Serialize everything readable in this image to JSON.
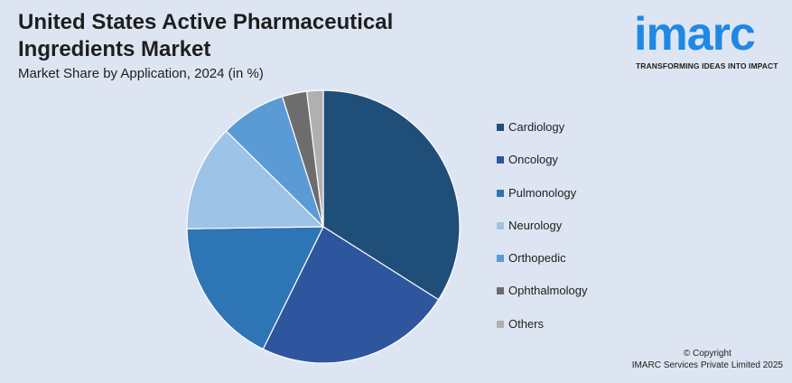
{
  "title": "United States Active Pharmaceutical Ingredients Market",
  "subtitle": "Market Share by Application, 2024 (in %)",
  "logo": {
    "word": "imarc",
    "tagline": "TRANSFORMING IDEAS INTO IMPACT"
  },
  "copyright": {
    "line1": "© Copyright",
    "line2": "IMARC Services Private Limited 2025"
  },
  "chart_data": {
    "type": "pie",
    "title": "United States Active Pharmaceutical Ingredients Market",
    "subtitle": "Market Share by Application, 2024 (in %)",
    "legend_position": "right",
    "slices": [
      {
        "label": "Cardiology",
        "value": 35,
        "color": "#1f4e79"
      },
      {
        "label": "Oncology",
        "value": 24,
        "color": "#2e569e"
      },
      {
        "label": "Pulmonology",
        "value": 18,
        "color": "#2e75b6"
      },
      {
        "label": "Neurology",
        "value": 13,
        "color": "#9dc3e6"
      },
      {
        "label": "Orthopedic",
        "value": 8,
        "color": "#5b9bd5"
      },
      {
        "label": "Ophthalmology",
        "value": 3,
        "color": "#6d6d6d"
      },
      {
        "label": "Others",
        "value": 2,
        "color": "#b0b0b0"
      }
    ]
  }
}
